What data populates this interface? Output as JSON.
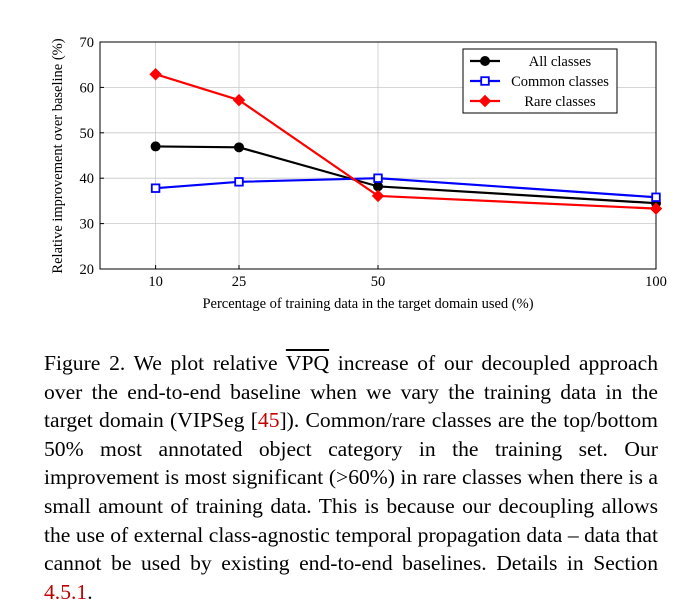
{
  "chart_data": {
    "type": "line",
    "title": "",
    "xlabel": "Percentage of training data in the target domain used (%)",
    "ylabel": "Relative improvement over baseline (%)",
    "x": [
      10,
      25,
      50,
      100
    ],
    "xticks": [
      "10",
      "25",
      "50",
      "100"
    ],
    "yticks": [
      "20",
      "30",
      "40",
      "50",
      "60",
      "70"
    ],
    "xlim": [
      0,
      100
    ],
    "ylim": [
      20,
      70
    ],
    "grid": true,
    "legend_position": "top-right",
    "series": [
      {
        "name": "All classes",
        "color": "#000000",
        "marker": "circle",
        "values": [
          47,
          46.8,
          38.2,
          34.5
        ]
      },
      {
        "name": "Common classes",
        "color": "#0000ff",
        "marker": "square",
        "values": [
          37.8,
          39.2,
          40,
          35.8
        ]
      },
      {
        "name": "Rare classes",
        "color": "#ff0000",
        "marker": "diamond",
        "values": [
          62.9,
          57.2,
          36.1,
          33.3
        ]
      }
    ]
  },
  "caption": {
    "lead": "Figure 2.  We plot relative ",
    "metric": "VPQ",
    "part1": " increase of our decoupled approach over the end-to-end baseline when we vary the training data in the target domain (VIPSeg [",
    "ref1": "45",
    "part2": "]). Common/rare classes are the top/bottom 50% most annotated object category in the training set.  Our improvement is most significant (>60%) in rare classes when there is a small amount of training data.  This is because our decoupling allows the use of external class-agnostic temporal propagation data – data that cannot be used by existing end-to-end baselines. Details in Section ",
    "ref2": "4.5.1",
    "part3": "."
  }
}
